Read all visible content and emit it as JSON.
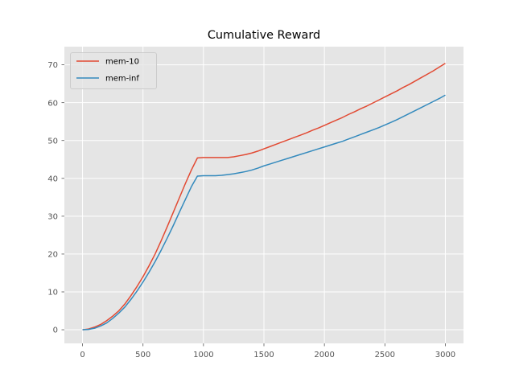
{
  "chart_data": {
    "type": "line",
    "title": "Cumulative Reward",
    "xlabel": "",
    "ylabel": "",
    "xlim": [
      -150,
      3150
    ],
    "ylim": [
      -3.6,
      74.8
    ],
    "xticks": [
      0,
      500,
      1000,
      1500,
      2000,
      2500,
      3000
    ],
    "yticks": [
      0,
      10,
      20,
      30,
      40,
      50,
      60,
      70
    ],
    "xtick_labels": [
      "0",
      "500",
      "1000",
      "1500",
      "2000",
      "2500",
      "3000"
    ],
    "ytick_labels": [
      "0",
      "10",
      "20",
      "30",
      "40",
      "50",
      "60",
      "70"
    ],
    "grid": true,
    "legend_position": "upper-left",
    "style": "ggplot",
    "series": [
      {
        "name": "mem-10",
        "color": "#E24A33",
        "x": [
          0,
          50,
          100,
          150,
          200,
          250,
          300,
          350,
          400,
          450,
          500,
          550,
          600,
          650,
          700,
          750,
          800,
          850,
          900,
          950,
          1000,
          1050,
          1100,
          1150,
          1200,
          1250,
          1300,
          1350,
          1400,
          1450,
          1500,
          1550,
          1600,
          1650,
          1700,
          1750,
          1800,
          1850,
          1900,
          1950,
          2000,
          2050,
          2100,
          2150,
          2200,
          2250,
          2300,
          2350,
          2400,
          2450,
          2500,
          2550,
          2600,
          2650,
          2700,
          2750,
          2800,
          2850,
          2900,
          2950,
          3000
        ],
        "y": [
          0,
          0.2,
          0.7,
          1.4,
          2.4,
          3.6,
          5.0,
          6.8,
          9.0,
          11.4,
          14.0,
          16.9,
          20.0,
          23.5,
          27.2,
          31.0,
          34.8,
          38.6,
          42.2,
          45.4,
          45.5,
          45.5,
          45.5,
          45.5,
          45.5,
          45.7,
          46.0,
          46.3,
          46.7,
          47.2,
          47.8,
          48.4,
          49.0,
          49.6,
          50.2,
          50.8,
          51.4,
          52.0,
          52.7,
          53.3,
          54.0,
          54.7,
          55.4,
          56.1,
          56.9,
          57.6,
          58.4,
          59.1,
          59.9,
          60.7,
          61.5,
          62.3,
          63.1,
          64.0,
          64.8,
          65.7,
          66.6,
          67.5,
          68.4,
          69.4,
          70.4
        ]
      },
      {
        "name": "mem-inf",
        "color": "#348ABD",
        "x": [
          0,
          50,
          100,
          150,
          200,
          250,
          300,
          350,
          400,
          450,
          500,
          550,
          600,
          650,
          700,
          750,
          800,
          850,
          900,
          950,
          1000,
          1050,
          1100,
          1150,
          1200,
          1250,
          1300,
          1350,
          1400,
          1450,
          1500,
          1550,
          1600,
          1650,
          1700,
          1750,
          1800,
          1850,
          1900,
          1950,
          2000,
          2050,
          2100,
          2150,
          2200,
          2250,
          2300,
          2350,
          2400,
          2450,
          2500,
          2550,
          2600,
          2650,
          2700,
          2750,
          2800,
          2850,
          2900,
          2950,
          3000
        ],
        "y": [
          0,
          0.1,
          0.4,
          1.0,
          1.8,
          3.0,
          4.4,
          6.0,
          8.0,
          10.2,
          12.6,
          15.2,
          18.0,
          21.0,
          24.2,
          27.5,
          31.0,
          34.4,
          37.8,
          40.6,
          40.7,
          40.7,
          40.7,
          40.8,
          41.0,
          41.2,
          41.5,
          41.8,
          42.2,
          42.7,
          43.3,
          43.8,
          44.3,
          44.8,
          45.3,
          45.8,
          46.3,
          46.8,
          47.3,
          47.8,
          48.3,
          48.8,
          49.3,
          49.8,
          50.4,
          51.0,
          51.6,
          52.2,
          52.8,
          53.4,
          54.1,
          54.8,
          55.5,
          56.3,
          57.1,
          57.9,
          58.7,
          59.5,
          60.3,
          61.1,
          62.0
        ]
      }
    ]
  }
}
